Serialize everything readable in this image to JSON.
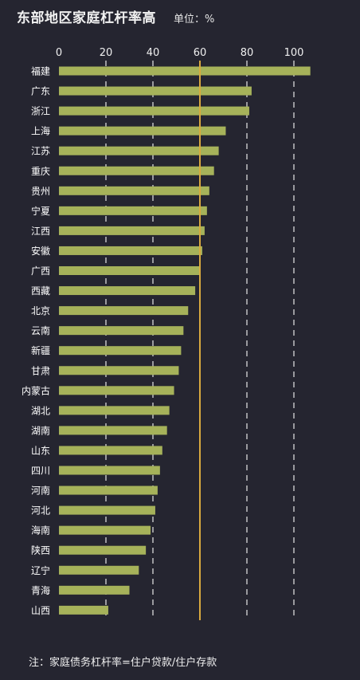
{
  "header": {
    "title": "东部地区家庭杠杆率高",
    "unit": "单位：%"
  },
  "footer": {
    "note": "注：家庭债务杠杆率=住户贷款/住户存款"
  },
  "colors": {
    "background": "#252530",
    "bar": "#a6b25a",
    "reference_line": "#d9a93f",
    "grid": "#e8e8e8"
  },
  "chart_data": {
    "type": "bar",
    "orientation": "horizontal",
    "title": "东部地区家庭杠杆率高",
    "unit": "%",
    "xlim": [
      0,
      105
    ],
    "xticks": [
      0,
      20,
      40,
      60,
      80,
      100
    ],
    "grid": true,
    "reference_line": 60,
    "categories": [
      "福建",
      "广东",
      "浙江",
      "上海",
      "江苏",
      "重庆",
      "贵州",
      "宁夏",
      "江西",
      "安徽",
      "广西",
      "西藏",
      "北京",
      "云南",
      "新疆",
      "甘肃",
      "内蒙古",
      "湖北",
      "湖南",
      "山东",
      "四川",
      "河南",
      "河北",
      "海南",
      "陕西",
      "辽宁",
      "青海",
      "山西"
    ],
    "values": [
      107,
      82,
      81,
      71,
      68,
      66,
      64,
      63,
      62,
      61,
      60,
      58,
      55,
      53,
      52,
      51,
      49,
      47,
      46,
      44,
      43,
      42,
      41,
      39,
      37,
      34,
      30,
      21
    ]
  }
}
